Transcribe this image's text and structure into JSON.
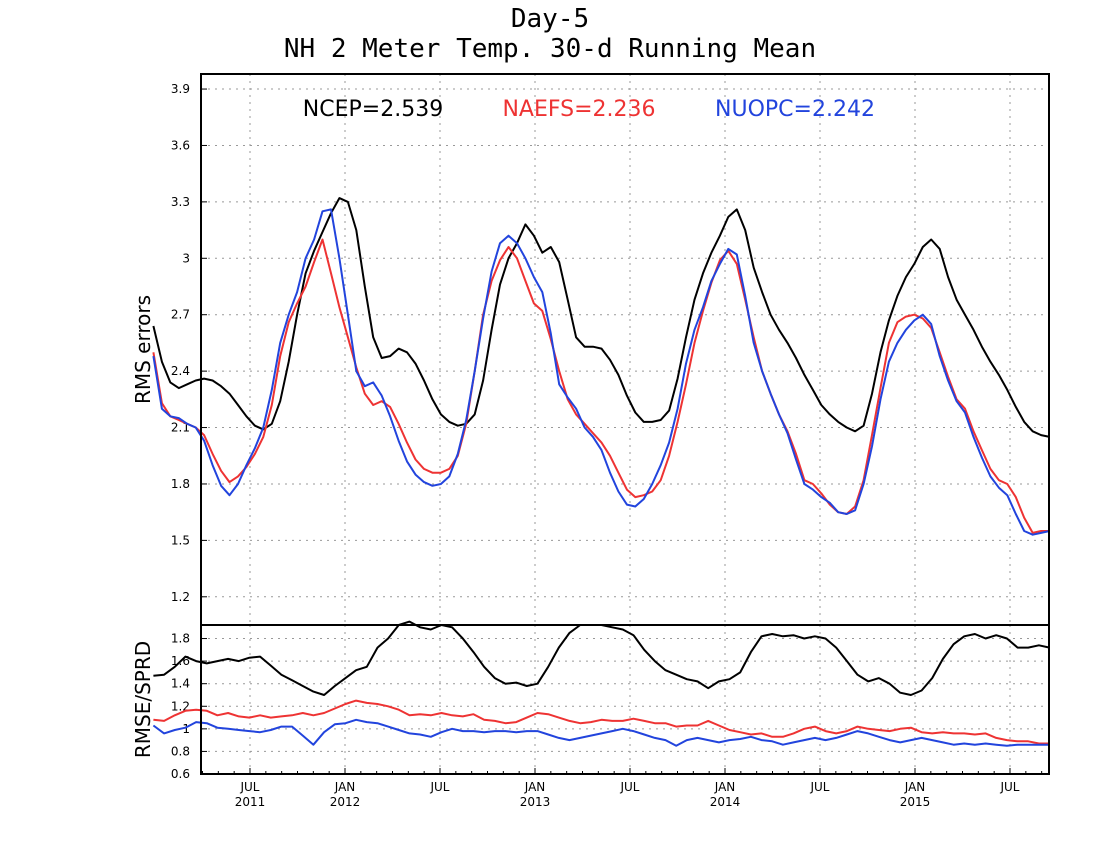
{
  "title": {
    "line1": "Day-5",
    "line2": "NH 2 Meter Temp. 30-d Running Mean"
  },
  "chart_data": [
    {
      "type": "line",
      "name": "rms_errors",
      "ylabel": "RMS errors",
      "ylim": [
        1.05,
        3.98
      ],
      "yticks": [
        "1.2",
        "1.5",
        "1.8",
        "2.1",
        "2.4",
        "2.7",
        "3",
        "3.3",
        "3.6",
        "3.9"
      ],
      "grid": true,
      "legend": "top",
      "x_start": "2011-01",
      "x_end": "2015-09",
      "x_step_months": 0.5,
      "series": [
        {
          "name": "NCEP",
          "legend_text": "NCEP=2.539",
          "color": "#000000",
          "values": [
            2.64,
            2.45,
            2.34,
            2.31,
            2.33,
            2.35,
            2.36,
            2.35,
            2.32,
            2.28,
            2.22,
            2.16,
            2.11,
            2.09,
            2.12,
            2.24,
            2.45,
            2.7,
            2.92,
            3.04,
            3.14,
            3.24,
            3.32,
            3.3,
            3.15,
            2.85,
            2.58,
            2.47,
            2.48,
            2.52,
            2.5,
            2.44,
            2.35,
            2.25,
            2.17,
            2.13,
            2.11,
            2.12,
            2.17,
            2.35,
            2.62,
            2.86,
            3.0,
            3.08,
            3.18,
            3.12,
            3.03,
            3.06,
            2.98,
            2.78,
            2.58,
            2.53,
            2.53,
            2.52,
            2.46,
            2.38,
            2.27,
            2.18,
            2.13,
            2.13,
            2.14,
            2.19,
            2.36,
            2.58,
            2.78,
            2.92,
            3.03,
            3.12,
            3.22,
            3.26,
            3.15,
            2.95,
            2.82,
            2.7,
            2.62,
            2.55,
            2.47,
            2.38,
            2.3,
            2.22,
            2.17,
            2.13,
            2.1,
            2.08,
            2.11,
            2.28,
            2.5,
            2.67,
            2.8,
            2.9,
            2.97,
            3.06,
            3.1,
            3.05,
            2.9,
            2.78,
            2.7,
            2.62,
            2.53,
            2.45,
            2.38,
            2.3,
            2.21,
            2.13,
            2.08,
            2.06,
            2.05
          ]
        },
        {
          "name": "NAEFS",
          "legend_text": "NAEFS=2.236",
          "color": "#ee3333",
          "values": [
            2.5,
            2.23,
            2.16,
            2.14,
            2.12,
            2.1,
            2.06,
            1.96,
            1.87,
            1.81,
            1.84,
            1.89,
            1.96,
            2.05,
            2.22,
            2.48,
            2.66,
            2.76,
            2.85,
            2.98,
            3.1,
            2.92,
            2.74,
            2.58,
            2.42,
            2.28,
            2.22,
            2.24,
            2.21,
            2.12,
            2.02,
            1.93,
            1.88,
            1.86,
            1.86,
            1.88,
            1.95,
            2.12,
            2.4,
            2.7,
            2.88,
            2.99,
            3.06,
            3.0,
            2.88,
            2.76,
            2.72,
            2.57,
            2.4,
            2.25,
            2.17,
            2.12,
            2.07,
            2.02,
            1.95,
            1.86,
            1.77,
            1.73,
            1.74,
            1.76,
            1.82,
            1.95,
            2.13,
            2.33,
            2.55,
            2.72,
            2.87,
            2.99,
            3.04,
            2.97,
            2.78,
            2.58,
            2.4,
            2.28,
            2.17,
            2.08,
            1.96,
            1.82,
            1.8,
            1.75,
            1.69,
            1.65,
            1.64,
            1.68,
            1.82,
            2.06,
            2.31,
            2.55,
            2.66,
            2.69,
            2.7,
            2.68,
            2.63,
            2.5,
            2.37,
            2.25,
            2.2,
            2.08,
            1.98,
            1.88,
            1.82,
            1.8,
            1.73,
            1.62,
            1.54,
            1.55,
            1.55
          ]
        },
        {
          "name": "NUOPC",
          "legend_text": "NUOPC=2.242",
          "color": "#2244dd",
          "values": [
            2.48,
            2.2,
            2.16,
            2.15,
            2.12,
            2.1,
            2.03,
            1.9,
            1.79,
            1.74,
            1.8,
            1.9,
            1.99,
            2.1,
            2.3,
            2.55,
            2.7,
            2.82,
            3.0,
            3.1,
            3.25,
            3.26,
            3.0,
            2.7,
            2.4,
            2.32,
            2.34,
            2.27,
            2.16,
            2.03,
            1.92,
            1.85,
            1.81,
            1.79,
            1.8,
            1.84,
            1.96,
            2.14,
            2.4,
            2.68,
            2.93,
            3.08,
            3.12,
            3.08,
            3.0,
            2.9,
            2.82,
            2.6,
            2.33,
            2.26,
            2.2,
            2.1,
            2.05,
            1.98,
            1.86,
            1.76,
            1.69,
            1.68,
            1.72,
            1.8,
            1.9,
            2.02,
            2.2,
            2.44,
            2.62,
            2.74,
            2.88,
            2.97,
            3.05,
            3.02,
            2.8,
            2.55,
            2.4,
            2.28,
            2.17,
            2.07,
            1.93,
            1.8,
            1.77,
            1.73,
            1.7,
            1.65,
            1.64,
            1.66,
            1.8,
            2.0,
            2.25,
            2.45,
            2.55,
            2.62,
            2.67,
            2.7,
            2.65,
            2.48,
            2.35,
            2.24,
            2.18,
            2.05,
            1.94,
            1.84,
            1.78,
            1.74,
            1.64,
            1.55,
            1.53,
            1.54,
            1.55
          ]
        }
      ]
    },
    {
      "type": "line",
      "name": "rmse_spread_ratio",
      "ylabel": "RMSE/SPRD",
      "ylim": [
        0.6,
        1.92
      ],
      "yticks": [
        "0.6",
        "0.8",
        "1",
        "1.2",
        "1.4",
        "1.6",
        "1.8"
      ],
      "grid": true,
      "x_ticks_months": [
        "JUL",
        "JAN",
        "JUL",
        "JAN",
        "JUL",
        "JAN",
        "JUL",
        "JAN",
        "JUL"
      ],
      "x_ticks_years": [
        "2011",
        "2012",
        "",
        "2013",
        "",
        "2014",
        "",
        "2015",
        ""
      ],
      "series": [
        {
          "name": "NCEP",
          "color": "#000000",
          "values": [
            1.47,
            1.48,
            1.55,
            1.64,
            1.6,
            1.58,
            1.6,
            1.62,
            1.6,
            1.63,
            1.64,
            1.56,
            1.48,
            1.43,
            1.38,
            1.33,
            1.3,
            1.38,
            1.45,
            1.52,
            1.55,
            1.72,
            1.8,
            1.92,
            1.95,
            1.9,
            1.88,
            1.92,
            1.9,
            1.8,
            1.68,
            1.55,
            1.45,
            1.4,
            1.41,
            1.38,
            1.4,
            1.55,
            1.72,
            1.85,
            1.92,
            1.92,
            1.92,
            1.9,
            1.88,
            1.83,
            1.7,
            1.6,
            1.52,
            1.48,
            1.44,
            1.42,
            1.36,
            1.42,
            1.44,
            1.5,
            1.68,
            1.82,
            1.84,
            1.82,
            1.83,
            1.8,
            1.82,
            1.8,
            1.72,
            1.6,
            1.48,
            1.42,
            1.45,
            1.4,
            1.32,
            1.3,
            1.34,
            1.45,
            1.62,
            1.75,
            1.82,
            1.84,
            1.8,
            1.83,
            1.8,
            1.72,
            1.72,
            1.74,
            1.72
          ]
        },
        {
          "name": "NAEFS",
          "color": "#ee3333",
          "values": [
            1.08,
            1.07,
            1.12,
            1.16,
            1.17,
            1.16,
            1.12,
            1.14,
            1.11,
            1.1,
            1.12,
            1.1,
            1.11,
            1.12,
            1.14,
            1.12,
            1.14,
            1.18,
            1.22,
            1.25,
            1.23,
            1.22,
            1.2,
            1.17,
            1.12,
            1.13,
            1.12,
            1.14,
            1.12,
            1.11,
            1.13,
            1.08,
            1.07,
            1.05,
            1.06,
            1.1,
            1.14,
            1.13,
            1.1,
            1.07,
            1.05,
            1.06,
            1.08,
            1.07,
            1.07,
            1.09,
            1.07,
            1.05,
            1.05,
            1.02,
            1.03,
            1.03,
            1.07,
            1.03,
            0.99,
            0.97,
            0.95,
            0.96,
            0.93,
            0.93,
            0.96,
            1.0,
            1.02,
            0.98,
            0.96,
            0.98,
            1.02,
            1.0,
            0.99,
            0.98,
            1.0,
            1.01,
            0.97,
            0.96,
            0.97,
            0.96,
            0.96,
            0.95,
            0.96,
            0.92,
            0.9,
            0.89,
            0.89,
            0.87,
            0.87
          ]
        },
        {
          "name": "NUOPC",
          "color": "#2244dd",
          "values": [
            1.03,
            0.96,
            0.99,
            1.01,
            1.06,
            1.05,
            1.01,
            1.0,
            0.99,
            0.98,
            0.97,
            0.99,
            1.02,
            1.02,
            0.94,
            0.86,
            0.97,
            1.04,
            1.05,
            1.08,
            1.06,
            1.05,
            1.02,
            0.99,
            0.96,
            0.95,
            0.93,
            0.97,
            1.0,
            0.98,
            0.98,
            0.97,
            0.98,
            0.98,
            0.97,
            0.98,
            0.98,
            0.95,
            0.92,
            0.9,
            0.92,
            0.94,
            0.96,
            0.98,
            1.0,
            0.98,
            0.95,
            0.92,
            0.9,
            0.85,
            0.9,
            0.92,
            0.9,
            0.88,
            0.9,
            0.91,
            0.93,
            0.9,
            0.89,
            0.86,
            0.88,
            0.9,
            0.92,
            0.9,
            0.92,
            0.95,
            0.98,
            0.96,
            0.93,
            0.9,
            0.88,
            0.9,
            0.92,
            0.9,
            0.88,
            0.86,
            0.87,
            0.86,
            0.87,
            0.86,
            0.85,
            0.86,
            0.86,
            0.86,
            0.86
          ]
        }
      ]
    }
  ]
}
